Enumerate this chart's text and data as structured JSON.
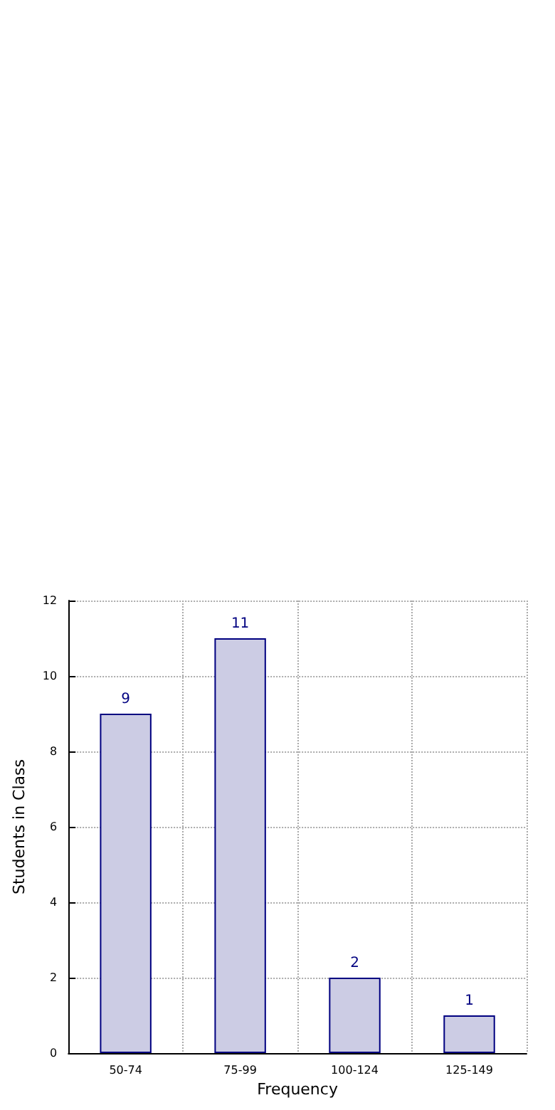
{
  "chart_data": {
    "type": "bar",
    "xlabel": "Frequency",
    "ylabel": "Students in Class",
    "categories": [
      "50-74",
      "75-99",
      "100-124",
      "125-149"
    ],
    "values": [
      9,
      11,
      2,
      1
    ],
    "color": "#cccce4",
    "ylim": [
      0,
      12
    ],
    "yticks": [
      0,
      2,
      4,
      6,
      8,
      10,
      12
    ],
    "grid": true,
    "data_labels": true
  }
}
